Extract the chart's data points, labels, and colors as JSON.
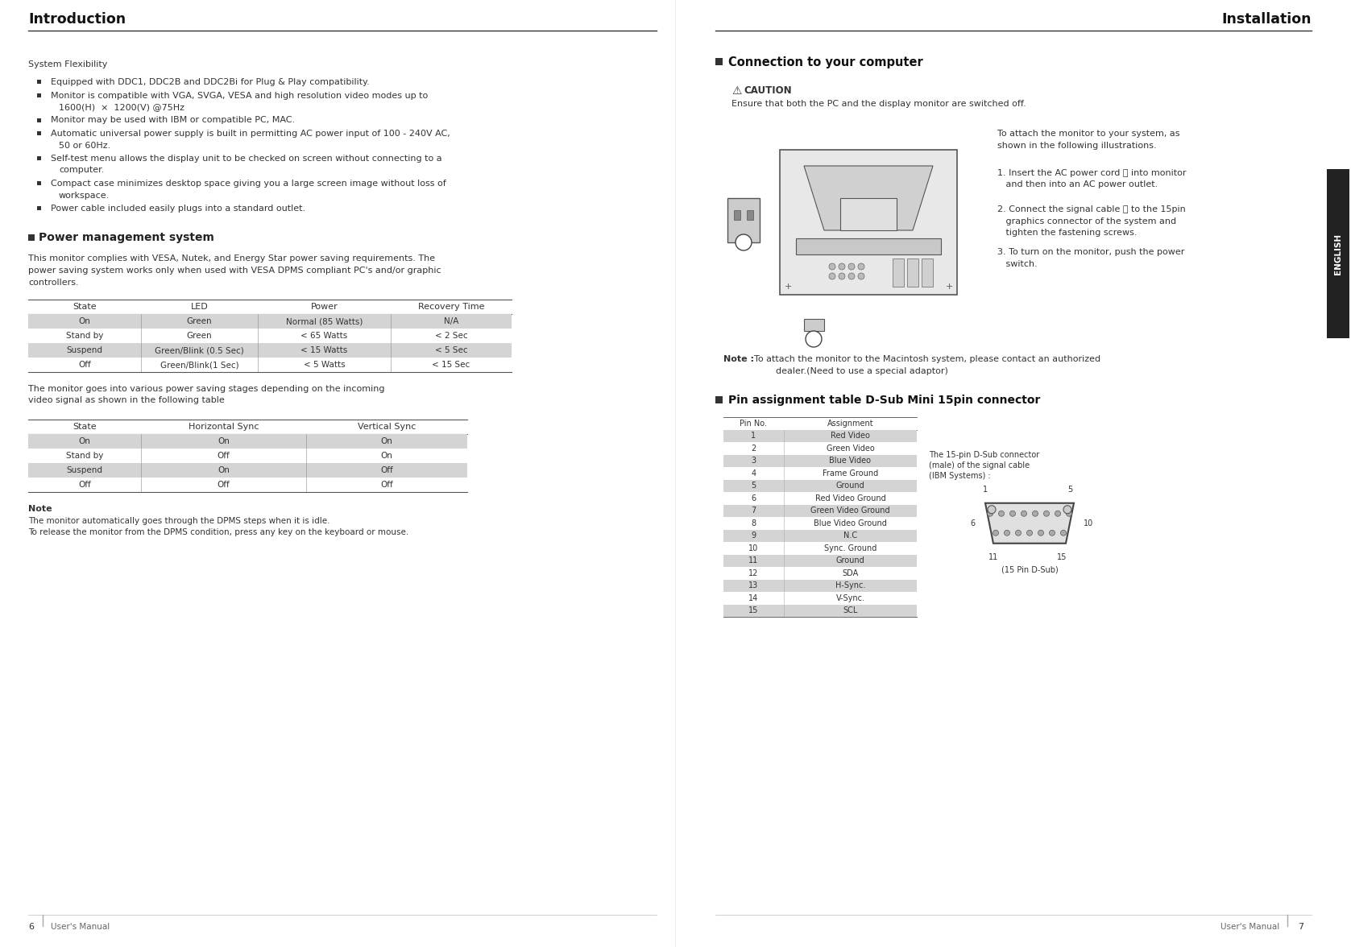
{
  "page_bg": "#ffffff",
  "left_title": "Introduction",
  "right_title": "Installation",
  "left_page_num": "6",
  "right_page_num": "7",
  "left_footer": "User's Manual",
  "right_footer": "User's Manual",
  "system_flexibility_title": "System Flexibility",
  "pms_title": "Power management system",
  "pms_body_lines": [
    "This monitor complies with VESA, Nutek, and Energy Star power saving requirements. The",
    "power saving system works only when used with VESA DPMS compliant PC's and/or graphic",
    "controllers."
  ],
  "table1_headers": [
    "State",
    "LED",
    "Power",
    "Recovery Time"
  ],
  "table1_rows": [
    [
      "On",
      "Green",
      "Normal (85 Watts)",
      "N/A"
    ],
    [
      "Stand by",
      "Green",
      "< 65 Watts",
      "< 2 Sec"
    ],
    [
      "Suspend",
      "Green/Blink (0.5 Sec)",
      "< 15 Watts",
      "< 5 Sec"
    ],
    [
      "Off",
      "Green/Blink(1 Sec)",
      "< 5 Watts",
      "< 15 Sec"
    ]
  ],
  "table1_row_colors": [
    "#d4d4d4",
    "#ffffff",
    "#d4d4d4",
    "#ffffff"
  ],
  "para_lines": [
    "The monitor goes into various power saving stages depending on the incoming",
    "video signal as shown in the following table"
  ],
  "table2_headers": [
    "State",
    "Horizontal Sync",
    "Vertical Sync"
  ],
  "table2_rows": [
    [
      "On",
      "On",
      "On"
    ],
    [
      "Stand by",
      "Off",
      "On"
    ],
    [
      "Suspend",
      "On",
      "Off"
    ],
    [
      "Off",
      "Off",
      "Off"
    ]
  ],
  "table2_row_colors": [
    "#d4d4d4",
    "#ffffff",
    "#d4d4d4",
    "#ffffff"
  ],
  "note_title": "Note",
  "note_lines": [
    "The monitor automatically goes through the DPMS steps when it is idle.",
    "To release the monitor from the DPMS condition, press any key on the keyboard or mouse."
  ],
  "conn_title": "Connection to your computer",
  "caution_title": "CAUTION",
  "caution_body": "Ensure that both the PC and the display monitor are switched off.",
  "install_desc_lines": [
    "To attach the monitor to your system, as",
    "shown in the following illustrations."
  ],
  "install_step1_lines": [
    "1. Insert the AC power cord ⓐ into monitor",
    "   and then into an AC power outlet."
  ],
  "install_step2_lines": [
    "2. Connect the signal cable ⓑ to the 15pin",
    "   graphics connector of the system and",
    "   tighten the fastening screws."
  ],
  "install_step3_lines": [
    "3. To turn on the monitor, push the power",
    "   switch."
  ],
  "install_note_lines": [
    "Note : To attach the monitor to the Macintosh system, please contact an authorized",
    "           dealer.(Need to use a special adaptor)"
  ],
  "pin_title": "Pin assignment table D-Sub Mini 15pin connector",
  "pin_table_headers": [
    "Pin No.",
    "Assignment"
  ],
  "pin_table_rows": [
    [
      "1",
      "Red Video"
    ],
    [
      "2",
      "Green Video"
    ],
    [
      "3",
      "Blue Video"
    ],
    [
      "4",
      "Frame Ground"
    ],
    [
      "5",
      "Ground"
    ],
    [
      "6",
      "Red Video Ground"
    ],
    [
      "7",
      "Green Video Ground"
    ],
    [
      "8",
      "Blue Video Ground"
    ],
    [
      "9",
      "N.C"
    ],
    [
      "10",
      "Sync. Ground"
    ],
    [
      "11",
      "Ground"
    ],
    [
      "12",
      "SDA"
    ],
    [
      "13",
      "H-Sync."
    ],
    [
      "14",
      "V-Sync."
    ],
    [
      "15",
      "SCL"
    ]
  ],
  "pin_row_colors": [
    "#d4d4d4",
    "#ffffff",
    "#d4d4d4",
    "#ffffff",
    "#d4d4d4",
    "#ffffff",
    "#d4d4d4",
    "#ffffff",
    "#d4d4d4",
    "#ffffff",
    "#d4d4d4",
    "#ffffff",
    "#d4d4d4",
    "#ffffff",
    "#d4d4d4"
  ],
  "pin_connector_desc_lines": [
    "The 15-pin D-Sub connector",
    "(male) of the signal cable",
    "(IBM Systems) :"
  ],
  "english_tab_text": "ENGLISH",
  "text_color": "#333333",
  "title_color": "#111111",
  "bullet_items": [
    [
      "Equipped with DDC1, DDC2B and DDC2Bi for Plug & Play compatibility."
    ],
    [
      "Monitor is compatible with VGA, SVGA, VESA and high resolution video modes up to",
      "1600(H)  ×  1200(V) @75Hz"
    ],
    [
      "Monitor may be used with IBM or compatible PC, MAC."
    ],
    [
      "Automatic universal power supply is built in permitting AC power input of 100 - 240V AC,",
      "50 or 60Hz."
    ],
    [
      "Self-test menu allows the display unit to be checked on screen without connecting to a",
      "computer."
    ],
    [
      "Compact case minimizes desktop space giving you a large screen image without loss of",
      "workspace."
    ],
    [
      "Power cable included easily plugs into a standard outlet."
    ]
  ]
}
